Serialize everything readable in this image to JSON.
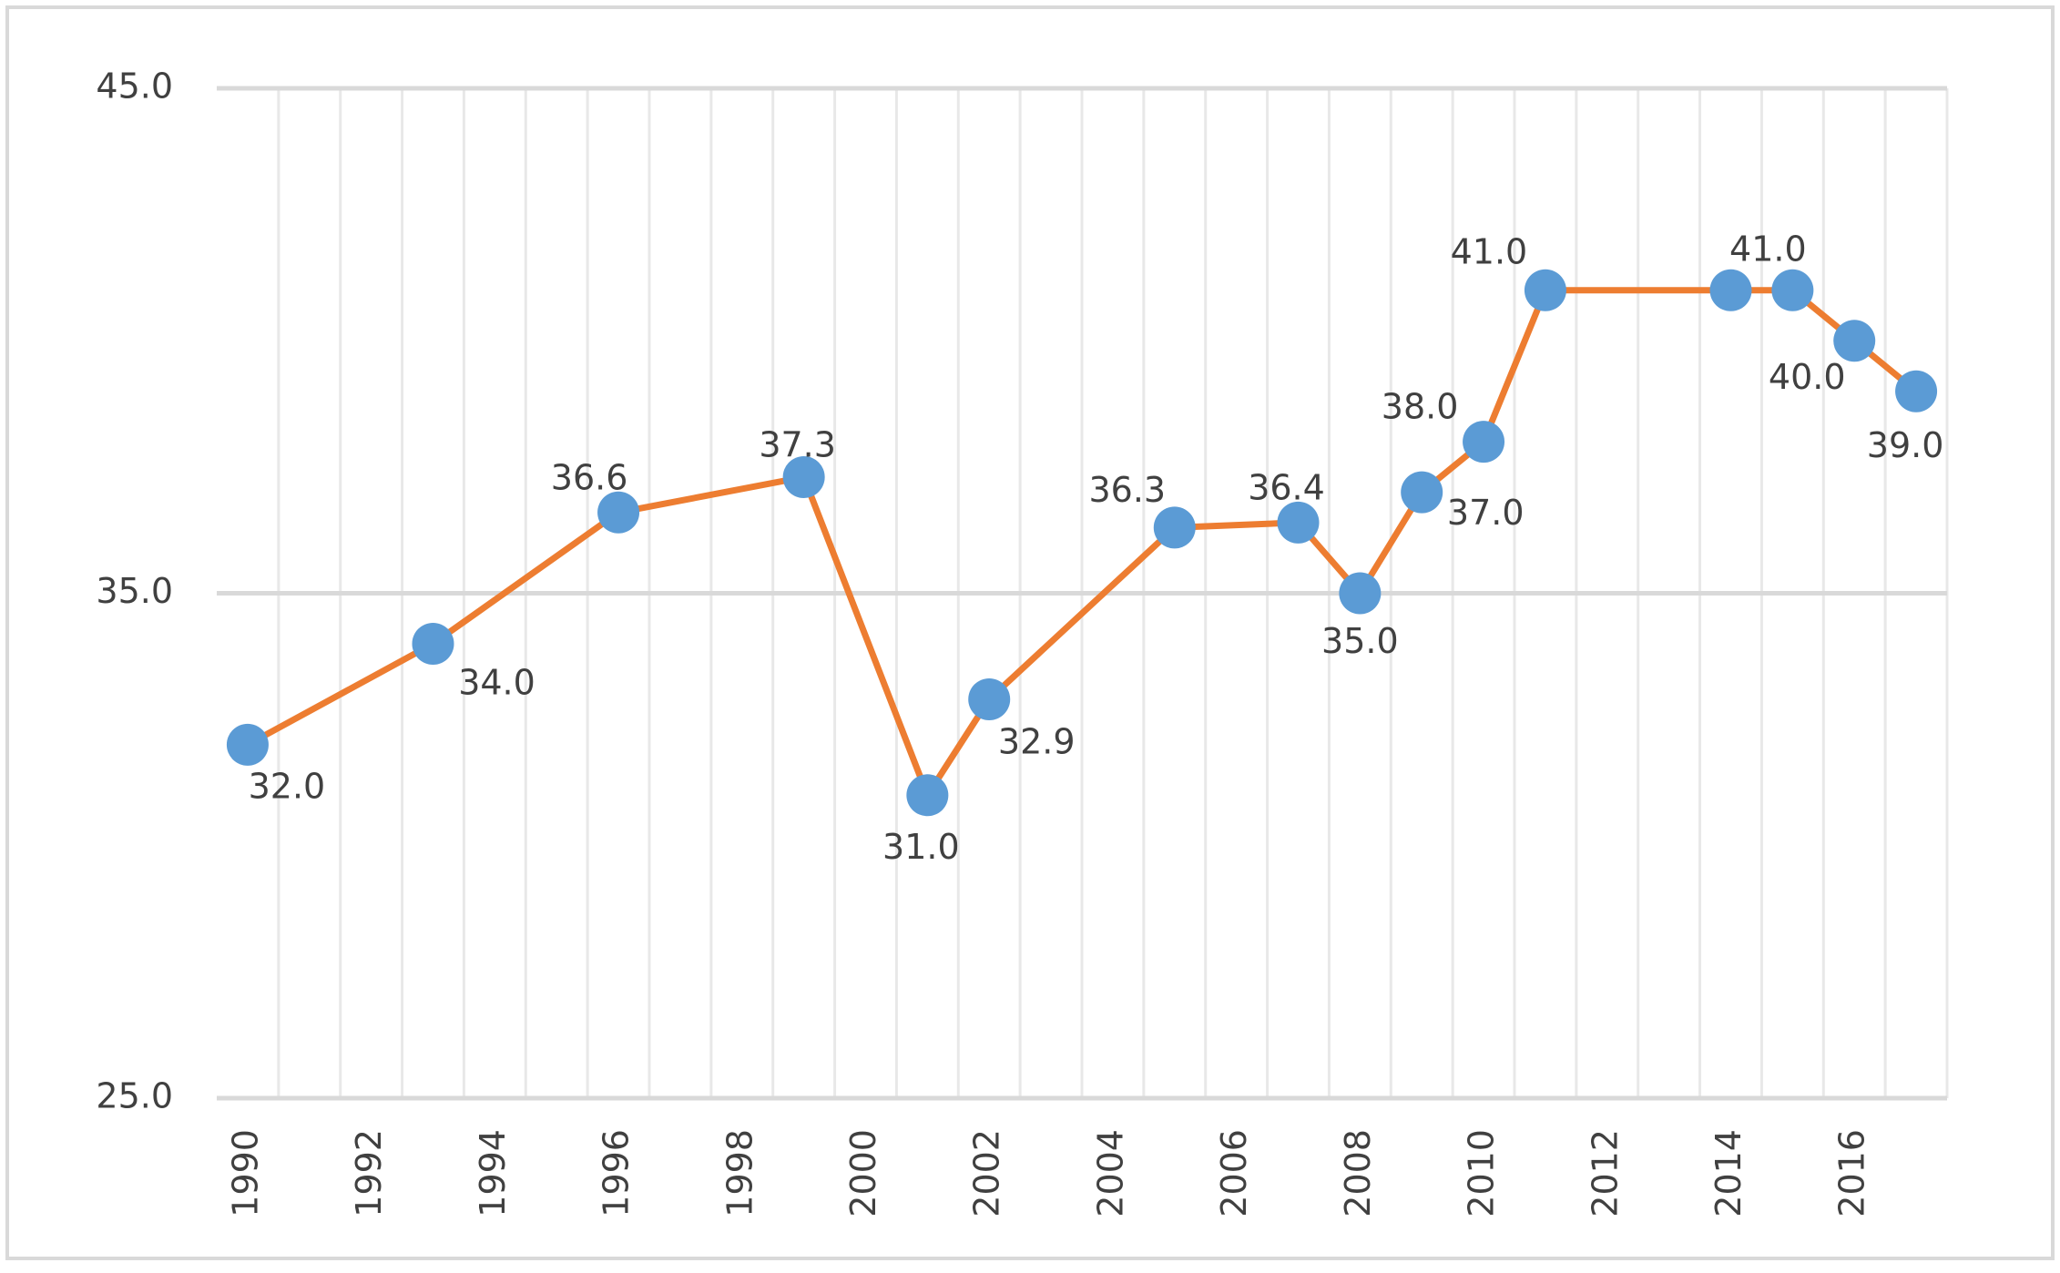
{
  "chart_data": {
    "type": "line",
    "title": "",
    "xlabel": "",
    "ylabel": "",
    "categories": [
      1990,
      1991,
      1992,
      1993,
      1994,
      1995,
      1996,
      1997,
      1998,
      1999,
      2000,
      2001,
      2002,
      2003,
      2004,
      2005,
      2006,
      2007,
      2008,
      2009,
      2010,
      2011,
      2012,
      2013,
      2014,
      2015,
      2016,
      2017
    ],
    "x_tick_labels": [
      "1990",
      "1992",
      "1994",
      "1996",
      "1998",
      "2000",
      "2002",
      "2004",
      "2006",
      "2008",
      "2010",
      "2012",
      "2014",
      "2016"
    ],
    "y_tick_labels": [
      "25.0",
      "35.0",
      "45.0"
    ],
    "ylim": [
      25,
      45
    ],
    "y_ticks": [
      25,
      35,
      45
    ],
    "grid": {
      "horizontal": true,
      "vertical": true
    },
    "legend": "none",
    "series": [
      {
        "line_color": "#ED7D31",
        "marker_color": "#5B9BD5",
        "points": [
          {
            "x": 1990,
            "y": 32.0,
            "label": "32.0"
          },
          {
            "x": 1993,
            "y": 34.0,
            "label": "34.0"
          },
          {
            "x": 1996,
            "y": 36.6,
            "label": "36.6"
          },
          {
            "x": 1999,
            "y": 37.3,
            "label": "37.3"
          },
          {
            "x": 2001,
            "y": 31.0,
            "label": "31.0"
          },
          {
            "x": 2002,
            "y": 32.9,
            "label": "32.9"
          },
          {
            "x": 2005,
            "y": 36.3,
            "label": "36.3"
          },
          {
            "x": 2007,
            "y": 36.4,
            "label": "36.4"
          },
          {
            "x": 2008,
            "y": 35.0,
            "label": "35.0"
          },
          {
            "x": 2009,
            "y": 37.0,
            "label": "37.0"
          },
          {
            "x": 2010,
            "y": 38.0,
            "label": "38.0"
          },
          {
            "x": 2011,
            "y": 41.0,
            "label": "41.0"
          },
          {
            "x": 2014,
            "y": 41.0,
            "label": null
          },
          {
            "x": 2015,
            "y": 41.0,
            "label": "41.0"
          },
          {
            "x": 2016,
            "y": 40.0,
            "label": "40.0"
          },
          {
            "x": 2017,
            "y": 39.0,
            "label": "39.0"
          }
        ]
      }
    ]
  }
}
